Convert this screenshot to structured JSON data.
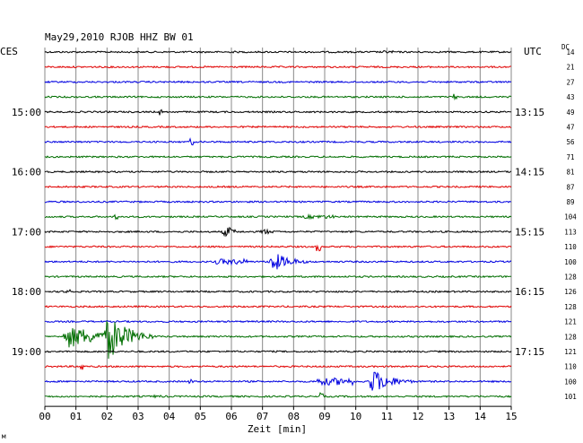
{
  "chart_data": {
    "type": "line",
    "title": "May29,2010   RJOB HHZ BW 01",
    "left_zone_label": "CES",
    "right_zone_label": "UTC",
    "dc_header": "DC",
    "xlabel": "Zeit [min]",
    "xlim": [
      0,
      15
    ],
    "x_ticks": [
      "00",
      "01",
      "02",
      "03",
      "04",
      "05",
      "06",
      "07",
      "08",
      "09",
      "10",
      "11",
      "12",
      "13",
      "14",
      "15"
    ],
    "left_time_labels": [
      {
        "trace_index": 4,
        "text": "15:00"
      },
      {
        "trace_index": 8,
        "text": "16:00"
      },
      {
        "trace_index": 12,
        "text": "17:00"
      },
      {
        "trace_index": 16,
        "text": "18:00"
      },
      {
        "trace_index": 20,
        "text": "19:00"
      }
    ],
    "right_time_labels": [
      {
        "trace_index": 4,
        "text": "13:15"
      },
      {
        "trace_index": 8,
        "text": "14:15"
      },
      {
        "trace_index": 12,
        "text": "15:15"
      },
      {
        "trace_index": 16,
        "text": "16:15"
      },
      {
        "trace_index": 20,
        "text": "17:15"
      }
    ],
    "trace_colors": [
      "#000000",
      "#e00000",
      "#0000e0",
      "#006e00"
    ],
    "dc_offsets": [
      14,
      21,
      27,
      43,
      49,
      47,
      56,
      71,
      81,
      87,
      89,
      104,
      113,
      110,
      100,
      128,
      126,
      128,
      121,
      128,
      121,
      110,
      100,
      101
    ],
    "events": [
      {
        "trace_index": 0,
        "x_min": 6.1,
        "amplitude": 1.2,
        "duration_min": 0.3,
        "kind": "spike"
      },
      {
        "trace_index": 0,
        "x_min": 11.0,
        "amplitude": 1.5,
        "duration_min": 0.4,
        "kind": "burst"
      },
      {
        "trace_index": 3,
        "x_min": 13.2,
        "amplitude": 4,
        "duration_min": 0.1,
        "kind": "spike"
      },
      {
        "trace_index": 4,
        "x_min": 3.7,
        "amplitude": 4,
        "duration_min": 0.1,
        "kind": "spike"
      },
      {
        "trace_index": 6,
        "x_min": 4.7,
        "amplitude": 4,
        "duration_min": 0.1,
        "kind": "spike"
      },
      {
        "trace_index": 11,
        "x_min": 2.3,
        "amplitude": 3,
        "duration_min": 0.1,
        "kind": "spike"
      },
      {
        "trace_index": 11,
        "x_min": 8.8,
        "amplitude": 2,
        "duration_min": 1.0,
        "kind": "burst"
      },
      {
        "trace_index": 12,
        "x_min": 5.7,
        "amplitude": 7,
        "duration_min": 0.6,
        "kind": "quake"
      },
      {
        "trace_index": 12,
        "x_min": 6.9,
        "amplitude": 3.5,
        "duration_min": 0.8,
        "kind": "quake"
      },
      {
        "trace_index": 13,
        "x_min": 8.8,
        "amplitude": 5,
        "duration_min": 0.1,
        "kind": "spike"
      },
      {
        "trace_index": 14,
        "x_min": 6.0,
        "amplitude": 3,
        "duration_min": 1.0,
        "kind": "burst"
      },
      {
        "trace_index": 14,
        "x_min": 7.2,
        "amplitude": 11,
        "duration_min": 1.4,
        "kind": "quake"
      },
      {
        "trace_index": 16,
        "x_min": 0.75,
        "amplitude": 6,
        "duration_min": 0.1,
        "kind": "spike"
      },
      {
        "trace_index": 19,
        "x_min": 0.6,
        "amplitude": 13,
        "duration_min": 3.0,
        "kind": "quake"
      },
      {
        "trace_index": 19,
        "x_min": 1.9,
        "amplitude": 26,
        "duration_min": 1.6,
        "kind": "quake"
      },
      {
        "trace_index": 21,
        "x_min": 1.2,
        "amplitude": 5,
        "duration_min": 0.1,
        "kind": "spike"
      },
      {
        "trace_index": 22,
        "x_min": 4.7,
        "amplitude": 2.5,
        "duration_min": 0.2,
        "kind": "spike"
      },
      {
        "trace_index": 22,
        "x_min": 9.3,
        "amplitude": 4,
        "duration_min": 1.2,
        "kind": "burst"
      },
      {
        "trace_index": 22,
        "x_min": 10.4,
        "amplitude": 14,
        "duration_min": 1.5,
        "kind": "quake"
      },
      {
        "trace_index": 23,
        "x_min": 8.9,
        "amplitude": 4,
        "duration_min": 0.1,
        "kind": "spike"
      },
      {
        "trace_index": 23,
        "x_min": 3.6,
        "amplitude": 1.5,
        "duration_min": 0.3,
        "kind": "burst"
      }
    ],
    "grid": true
  }
}
